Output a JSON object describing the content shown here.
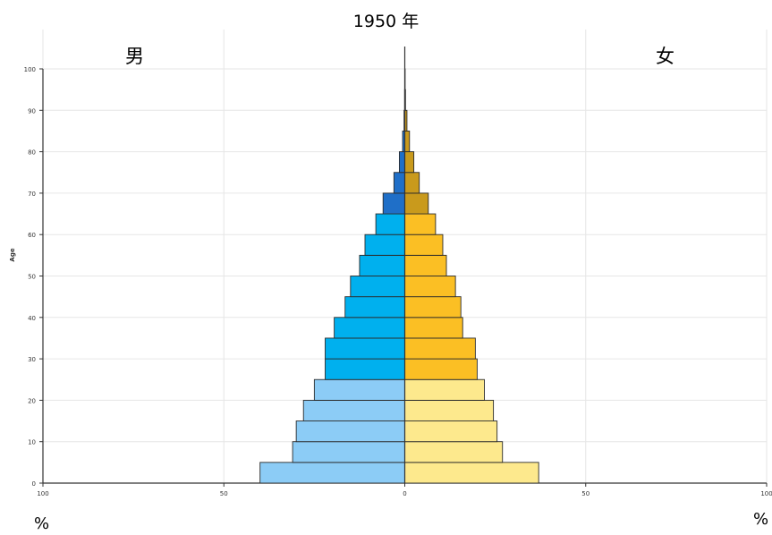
{
  "chart_data": {
    "type": "bar",
    "orientation": "horizontal",
    "subtype": "population-pyramid",
    "title": "1950 年",
    "left_label": "男",
    "right_label": "女",
    "ylabel": "Age",
    "x_unit_left": "%",
    "x_unit_right": "%",
    "xlim": [
      -100,
      100
    ],
    "ylim": [
      0,
      100
    ],
    "x_ticks": [
      {
        "value": -100,
        "label": "100"
      },
      {
        "value": -50,
        "label": "50"
      },
      {
        "value": 0,
        "label": "0"
      },
      {
        "value": 50,
        "label": "50"
      },
      {
        "value": 100,
        "label": "100"
      }
    ],
    "y_ticks": [
      0,
      10,
      20,
      30,
      40,
      50,
      60,
      70,
      80,
      90,
      100
    ],
    "grid": true,
    "age_groups": [
      {
        "start": 0,
        "end": 5,
        "male": 40,
        "female": 37
      },
      {
        "start": 5,
        "end": 10,
        "male": 31,
        "female": 27
      },
      {
        "start": 10,
        "end": 15,
        "male": 30,
        "female": 25.5
      },
      {
        "start": 15,
        "end": 20,
        "male": 28,
        "female": 24.5
      },
      {
        "start": 20,
        "end": 25,
        "male": 25,
        "female": 22
      },
      {
        "start": 25,
        "end": 30,
        "male": 22,
        "female": 20
      },
      {
        "start": 30,
        "end": 35,
        "male": 22,
        "female": 19.5
      },
      {
        "start": 35,
        "end": 40,
        "male": 19.5,
        "female": 16
      },
      {
        "start": 40,
        "end": 45,
        "male": 16.5,
        "female": 15.5
      },
      {
        "start": 45,
        "end": 50,
        "male": 15,
        "female": 14
      },
      {
        "start": 50,
        "end": 55,
        "male": 12.5,
        "female": 11.5
      },
      {
        "start": 55,
        "end": 60,
        "male": 11,
        "female": 10.5
      },
      {
        "start": 60,
        "end": 65,
        "male": 8,
        "female": 8.5
      },
      {
        "start": 65,
        "end": 70,
        "male": 6,
        "female": 6.5
      },
      {
        "start": 70,
        "end": 75,
        "male": 3,
        "female": 4
      },
      {
        "start": 75,
        "end": 80,
        "male": 1.5,
        "female": 2.5
      },
      {
        "start": 80,
        "end": 85,
        "male": 0.6,
        "female": 1.3
      },
      {
        "start": 85,
        "end": 90,
        "male": 0.2,
        "female": 0.6
      },
      {
        "start": 90,
        "end": 95,
        "male": 0.05,
        "female": 0.2
      },
      {
        "start": 95,
        "end": 100,
        "male": 0.02,
        "female": 0.05
      }
    ],
    "colors": {
      "male_young": "#8cccf6",
      "male_working": "#00b0ee",
      "male_old": "#1f6fc8",
      "female_young": "#fde98d",
      "female_working": "#fbbf24",
      "female_old": "#c99a1c",
      "bar_stroke": "#2b2b2b",
      "grid": "#e6e6e6",
      "axis": "#333333"
    }
  }
}
